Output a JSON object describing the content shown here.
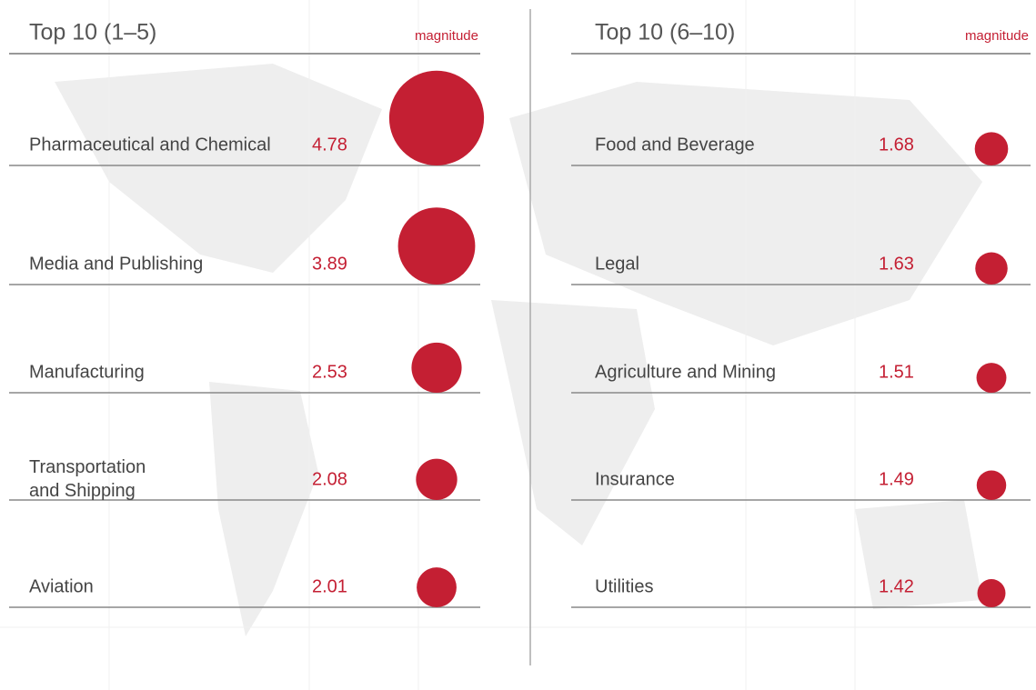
{
  "chart_data": [
    {
      "type": "bubble",
      "title": "Top 10 (1–5)",
      "value_label": "magnitude",
      "color": "#c41f33",
      "categories": [
        "Pharmaceutical and Chemical",
        "Media and Publishing",
        "Manufacturing",
        "Transportation\nand Shipping",
        "Aviation"
      ],
      "values": [
        4.78,
        3.89,
        2.53,
        2.08,
        2.01
      ]
    },
    {
      "type": "bubble",
      "title": "Top 10 (6–10)",
      "value_label": "magnitude",
      "color": "#c41f33",
      "categories": [
        "Food and Beverage",
        "Legal",
        "Agriculture and Mining",
        "Insurance",
        "Utilities"
      ],
      "values": [
        1.68,
        1.63,
        1.51,
        1.49,
        1.42
      ]
    }
  ]
}
